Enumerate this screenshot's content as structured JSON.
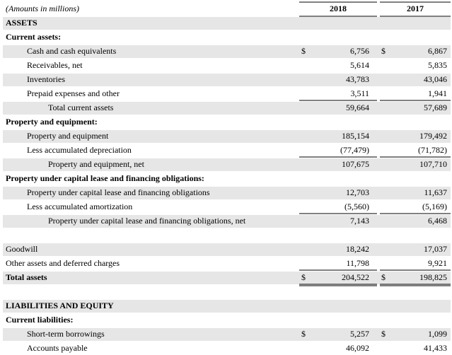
{
  "table": {
    "header": {
      "label": "(Amounts in millions)",
      "columns": [
        "2018",
        "2017"
      ]
    },
    "rows": [
      {
        "label": "ASSETS"
      },
      {
        "label": "Current assets:"
      },
      {
        "label": "Cash and cash equivalents",
        "currency_2018": "$",
        "v2018": "6,756",
        "currency_2017": "$",
        "v2017": "6,867"
      },
      {
        "label": "Receivables, net",
        "v2018": "5,614",
        "v2017": "5,835"
      },
      {
        "label": "Inventories",
        "v2018": "43,783",
        "v2017": "43,046"
      },
      {
        "label": "Prepaid expenses and other",
        "v2018": "3,511",
        "v2017": "1,941"
      },
      {
        "label": "Total current assets",
        "v2018": "59,664",
        "v2017": "57,689"
      },
      {
        "label": "Property and equipment:"
      },
      {
        "label": "Property and equipment",
        "v2018": "185,154",
        "v2017": "179,492"
      },
      {
        "label": "Less accumulated depreciation",
        "v2018": "(77,479)",
        "v2017": "(71,782)"
      },
      {
        "label": "Property and equipment, net",
        "v2018": "107,675",
        "v2017": "107,710"
      },
      {
        "label": "Property under capital lease and financing obligations:"
      },
      {
        "label": "Property under capital lease and financing obligations",
        "v2018": "12,703",
        "v2017": "11,637"
      },
      {
        "label": "Less accumulated amortization",
        "v2018": "(5,560)",
        "v2017": "(5,169)"
      },
      {
        "label": "Property under capital lease and financing obligations, net",
        "v2018": "7,143",
        "v2017": "6,468"
      },
      {
        "label": "Goodwill",
        "v2018": "18,242",
        "v2017": "17,037"
      },
      {
        "label": "Other assets and deferred charges",
        "v2018": "11,798",
        "v2017": "9,921"
      },
      {
        "label": "Total assets",
        "currency_2018": "$",
        "v2018": "204,522",
        "currency_2017": "$",
        "v2017": "198,825"
      },
      {
        "label": "LIABILITIES AND EQUITY"
      },
      {
        "label": "Current liabilities:"
      },
      {
        "label": "Short-term borrowings",
        "currency_2018": "$",
        "v2018": "5,257",
        "currency_2017": "$",
        "v2017": "1,099"
      },
      {
        "label": "Accounts payable",
        "v2018": "46,092",
        "v2017": "41,433"
      }
    ]
  }
}
